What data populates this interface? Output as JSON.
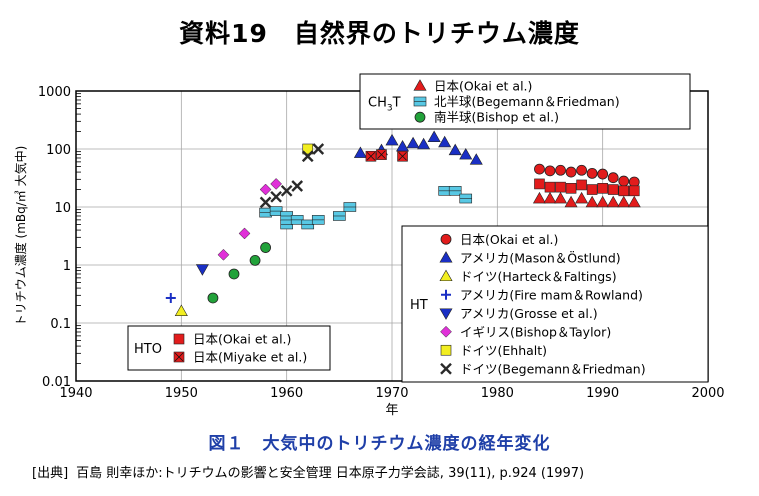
{
  "page": {
    "title": "資料19　自然界のトリチウム濃度",
    "caption": "図１　大気中のトリチウム濃度の経年変化",
    "source": {
      "label": "[出典]",
      "text": "百島 則幸ほか:トリチウムの影響と安全管理 日本原子力学会誌, 39(11), p.924 (1997)"
    }
  },
  "chart_data": {
    "type": "scatter",
    "title": "",
    "xlabel": "年",
    "ylabel": "トリチウム濃度 (mBq/㎥ 大気中)",
    "xlim": [
      1940,
      2000
    ],
    "ylim": [
      0.01,
      1000
    ],
    "yscale": "log",
    "grid": true,
    "x_ticks": [
      "1940",
      "1950",
      "1960",
      "1970",
      "1980",
      "1990",
      "2000"
    ],
    "y_ticks": [
      "0.01",
      "0.1",
      "1",
      "10",
      "100",
      "1000"
    ],
    "groups": [
      {
        "name": "CH3T",
        "legend_position": "top",
        "series": [
          {
            "name": "日本(Okai et al.)",
            "marker": "triangle-up",
            "color": "#e21c1c",
            "points": [
              [
                1984,
                14
              ],
              [
                1985,
                14
              ],
              [
                1986,
                14
              ],
              [
                1987,
                12
              ],
              [
                1988,
                14
              ],
              [
                1989,
                12
              ],
              [
                1990,
                12
              ],
              [
                1991,
                12
              ],
              [
                1992,
                12
              ],
              [
                1993,
                12
              ]
            ]
          },
          {
            "name": "北半球(Begemann＆Friedman)",
            "marker": "rectangle",
            "color": "#58c8e4",
            "points": [
              [
                1958,
                8
              ],
              [
                1959,
                8.5
              ],
              [
                1960,
                7
              ],
              [
                1960,
                5
              ],
              [
                1961,
                6
              ],
              [
                1962,
                5
              ],
              [
                1963,
                6
              ],
              [
                1965,
                7
              ],
              [
                1966,
                10
              ],
              [
                1975,
                19
              ],
              [
                1976,
                19
              ],
              [
                1977,
                14
              ]
            ]
          },
          {
            "name": "南半球(Bishop et al.)",
            "marker": "circle",
            "color": "#22a23a",
            "points": [
              [
                1953,
                0.27
              ],
              [
                1955,
                0.7
              ],
              [
                1957,
                1.2
              ],
              [
                1958,
                2
              ]
            ]
          }
        ]
      },
      {
        "name": "HT",
        "legend_position": "right",
        "series": [
          {
            "name": "日本(Okai et al.)",
            "marker": "circle",
            "color": "#e21c1c",
            "points": [
              [
                1984,
                45
              ],
              [
                1985,
                42
              ],
              [
                1986,
                43
              ],
              [
                1987,
                40
              ],
              [
                1988,
                43
              ],
              [
                1989,
                38
              ],
              [
                1990,
                37
              ],
              [
                1991,
                32
              ],
              [
                1992,
                28
              ],
              [
                1993,
                27
              ]
            ]
          },
          {
            "name": "アメリカ(Mason＆Östlund)",
            "marker": "triangle-up",
            "color": "#1a2fc4",
            "points": [
              [
                1967,
                85
              ],
              [
                1969,
                95
              ],
              [
                1970,
                140
              ],
              [
                1971,
                110
              ],
              [
                1972,
                125
              ],
              [
                1973,
                120
              ],
              [
                1974,
                160
              ],
              [
                1975,
                130
              ],
              [
                1976,
                95
              ],
              [
                1977,
                80
              ],
              [
                1978,
                65
              ]
            ]
          },
          {
            "name": "ドイツ(Harteck＆Faltings)",
            "marker": "triangle-up",
            "color": "#f2ee21",
            "points": [
              [
                1950,
                0.16
              ]
            ]
          },
          {
            "name": "アメリカ(Fire mam＆Rowland)",
            "marker": "plus",
            "color": "#1a2fc4",
            "points": [
              [
                1949,
                0.27
              ]
            ]
          },
          {
            "name": "アメリカ(Grosse et al.)",
            "marker": "triangle-down",
            "color": "#1a2fc4",
            "points": [
              [
                1952,
                0.85
              ]
            ]
          },
          {
            "name": "イギリス(Bishop＆Taylor)",
            "marker": "diamond",
            "color": "#e030d8",
            "points": [
              [
                1954,
                1.5
              ],
              [
                1956,
                3.5
              ],
              [
                1958,
                20
              ],
              [
                1959,
                25
              ]
            ]
          },
          {
            "name": "ドイツ(Ehhalt)",
            "marker": "square",
            "color": "#f2ee21",
            "points": [
              [
                1962,
                100
              ]
            ]
          },
          {
            "name": "ドイツ(Begemann＆Friedman)",
            "marker": "x",
            "color": "#2a2a2a",
            "points": [
              [
                1958,
                12
              ],
              [
                1959,
                15
              ],
              [
                1960,
                19
              ],
              [
                1961,
                23
              ],
              [
                1962,
                75
              ],
              [
                1963,
                100
              ]
            ]
          }
        ]
      },
      {
        "name": "HTO",
        "legend_position": "bottom-left",
        "series": [
          {
            "name": "日本(Okai et al.)",
            "marker": "square",
            "color": "#e21c1c",
            "points": [
              [
                1984,
                25
              ],
              [
                1985,
                22
              ],
              [
                1986,
                22
              ],
              [
                1987,
                21
              ],
              [
                1988,
                24
              ],
              [
                1989,
                20
              ],
              [
                1990,
                21
              ],
              [
                1991,
                20
              ],
              [
                1992,
                19
              ],
              [
                1993,
                19
              ]
            ]
          },
          {
            "name": "日本(Miyake et al.)",
            "marker": "square-x",
            "color": "#e21c1c",
            "points": [
              [
                1968,
                75
              ],
              [
                1969,
                80
              ],
              [
                1971,
                75
              ]
            ]
          }
        ]
      }
    ]
  }
}
